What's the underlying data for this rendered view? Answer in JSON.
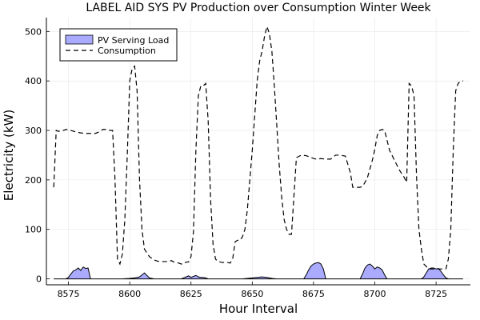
{
  "chart_data": {
    "type": "area",
    "title": "LABEL AID SYS PV Production over Consumption Winter Week",
    "xlabel": "Hour Interval",
    "ylabel": "Electricity (kW)",
    "xlim": [
      8566,
      8739
    ],
    "ylim": [
      -12,
      528
    ],
    "xticks": [
      8575,
      8600,
      8625,
      8650,
      8675,
      8700,
      8725
    ],
    "yticks": [
      0,
      100,
      200,
      300,
      400,
      500
    ],
    "grid": true,
    "legend_position": "top-left",
    "series": [
      {
        "name": "PV Serving Load",
        "kind": "area",
        "color": "#aaaaff",
        "x": [
          8569,
          8574,
          8575,
          8576,
          8577,
          8578,
          8579,
          8580,
          8581,
          8582,
          8583,
          8584,
          8597,
          8600,
          8602,
          8604,
          8605,
          8606,
          8607,
          8608,
          8609,
          8610,
          8621,
          8622,
          8623,
          8624,
          8625,
          8626,
          8627,
          8628,
          8629,
          8630,
          8631,
          8632,
          8646,
          8648,
          8650,
          8652,
          8654,
          8656,
          8658,
          8660,
          8671,
          8672,
          8673,
          8674,
          8675,
          8676,
          8677,
          8678,
          8679,
          8680,
          8694,
          8695,
          8696,
          8697,
          8698,
          8699,
          8700,
          8701,
          8702,
          8703,
          8704,
          8705,
          8719,
          8720,
          8721,
          8722,
          8723,
          8724,
          8725,
          8726,
          8727,
          8728,
          8729,
          8730,
          8736
        ],
        "y": [
          0,
          0,
          3,
          10,
          16,
          18,
          22,
          17,
          24,
          21,
          22,
          0,
          0,
          1,
          2,
          4,
          8,
          12,
          7,
          2,
          1,
          0,
          0,
          2,
          4,
          6,
          3,
          5,
          7,
          4,
          3,
          3,
          2,
          0,
          0,
          1,
          2,
          3,
          4,
          3,
          1,
          0,
          0,
          8,
          18,
          26,
          30,
          32,
          33,
          30,
          20,
          0,
          0,
          10,
          22,
          28,
          30,
          26,
          20,
          24,
          22,
          18,
          8,
          0,
          0,
          4,
          12,
          20,
          22,
          22,
          20,
          21,
          15,
          8,
          2,
          0,
          0
        ]
      },
      {
        "name": "Consumption",
        "kind": "line",
        "style": "dashed",
        "color": "#000000",
        "x": [
          8569,
          8570,
          8571,
          8572,
          8573,
          8574,
          8576,
          8578,
          8580,
          8582,
          8584,
          8586,
          8588,
          8589,
          8590,
          8592,
          8593,
          8594,
          8595,
          8596,
          8597,
          8598,
          8599,
          8600,
          8601,
          8602,
          8603,
          8604,
          8605,
          8606,
          8608,
          8610,
          8612,
          8614,
          8616,
          8617,
          8618,
          8620,
          8621,
          8622,
          8623,
          8624,
          8625,
          8626,
          8627,
          8628,
          8629,
          8630,
          8631,
          8632,
          8633,
          8634,
          8635,
          8636,
          8638,
          8640,
          8641,
          8642,
          8643,
          8644,
          8645,
          8646,
          8647,
          8648,
          8649,
          8650,
          8651,
          8652,
          8653,
          8654,
          8655,
          8656,
          8657,
          8658,
          8659,
          8660,
          8661,
          8662,
          8663,
          8664,
          8665,
          8666,
          8668,
          8670,
          8672,
          8674,
          8676,
          8678,
          8680,
          8682,
          8684,
          8686,
          8688,
          8690,
          8691,
          8692,
          8694,
          8695,
          8696,
          8697,
          8698,
          8699,
          8700,
          8701,
          8702,
          8703,
          8704,
          8705,
          8706,
          8708,
          8710,
          8712,
          8713,
          8714,
          8715,
          8716,
          8717,
          8718,
          8719,
          8720,
          8722,
          8724,
          8726,
          8728,
          8729,
          8730,
          8731,
          8732,
          8733,
          8734,
          8735,
          8736
        ],
        "y": [
          185,
          300,
          298,
          300,
          300,
          302,
          300,
          297,
          295,
          294,
          294,
          294,
          298,
          302,
          302,
          300,
          300,
          200,
          40,
          30,
          50,
          120,
          250,
          400,
          425,
          430,
          380,
          200,
          100,
          60,
          45,
          38,
          35,
          35,
          35,
          37,
          34,
          32,
          30,
          30,
          34,
          34,
          45,
          95,
          260,
          370,
          390,
          390,
          395,
          320,
          160,
          70,
          40,
          35,
          33,
          33,
          32,
          40,
          75,
          78,
          78,
          85,
          100,
          140,
          200,
          260,
          330,
          400,
          440,
          460,
          490,
          510,
          495,
          460,
          390,
          310,
          230,
          165,
          120,
          100,
          90,
          90,
          245,
          250,
          249,
          245,
          242,
          243,
          242,
          242,
          250,
          250,
          248,
          215,
          185,
          185,
          185,
          187,
          195,
          205,
          222,
          240,
          262,
          290,
          300,
          302,
          300,
          280,
          260,
          240,
          220,
          205,
          195,
          395,
          390,
          370,
          210,
          100,
          60,
          30,
          20,
          20,
          20,
          20,
          20,
          40,
          100,
          260,
          380,
          395,
          400,
          400
        ]
      }
    ]
  }
}
